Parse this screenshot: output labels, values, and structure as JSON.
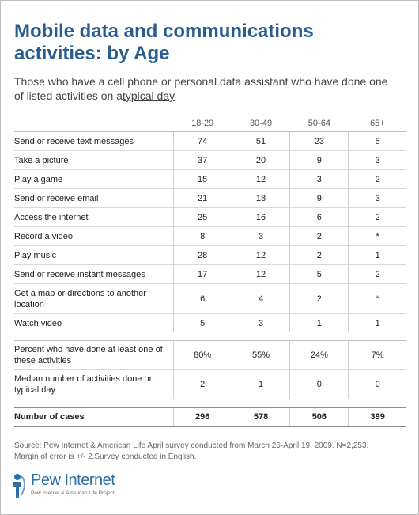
{
  "title": "Mobile data and communications activities: by Age",
  "subtitle_main": "Those who have a cell phone or personal data assistant who have done one of listed activities on a",
  "subtitle_underlined": "typical day",
  "source_line1": "Source: Pew Internet & American Life April survey conducted from March 26-April 19, 2009. N=2,253.",
  "source_line2": "Margin of error is +/- 2.Survey conducted in English.",
  "logo": {
    "name": "Pew Internet",
    "tagline": "Pew Internet & American Life Project",
    "icon": "pew-logo-icon"
  },
  "colors": {
    "title": "#2a5d8f",
    "logo": "#2a6fa7",
    "text": "#222222"
  },
  "chart_data": {
    "type": "table",
    "columns": [
      "18-29",
      "30-49",
      "50-64",
      "65+"
    ],
    "rows": [
      {
        "label": "Send or receive text messages",
        "values": [
          "74",
          "51",
          "23",
          "5"
        ]
      },
      {
        "label": "Take a picture",
        "values": [
          "37",
          "20",
          "9",
          "3"
        ]
      },
      {
        "label": "Play a game",
        "values": [
          "15",
          "12",
          "3",
          "2"
        ]
      },
      {
        "label": "Send or receive email",
        "values": [
          "21",
          "18",
          "9",
          "3"
        ]
      },
      {
        "label": "Access the internet",
        "values": [
          "25",
          "16",
          "6",
          "2"
        ]
      },
      {
        "label": "Record a video",
        "values": [
          "8",
          "3",
          "2",
          "*"
        ]
      },
      {
        "label": "Play music",
        "values": [
          "28",
          "12",
          "2",
          "1"
        ]
      },
      {
        "label": "Send or receive instant messages",
        "values": [
          "17",
          "12",
          "5",
          "2"
        ]
      },
      {
        "label": "Get a map or directions to another location",
        "values": [
          "6",
          "4",
          "2",
          "*"
        ]
      },
      {
        "label": "Watch video",
        "values": [
          "5",
          "3",
          "1",
          "1"
        ]
      }
    ],
    "summary_rows": [
      {
        "label": "Percent who have done at least one of these activities",
        "values": [
          "80%",
          "55%",
          "24%",
          "7%"
        ]
      },
      {
        "label": "Median number of activities done on typical day",
        "values": [
          "2",
          "1",
          "0",
          "0"
        ]
      }
    ],
    "cases_row": {
      "label": "Number of cases",
      "values": [
        "296",
        "578",
        "506",
        "399"
      ]
    }
  }
}
